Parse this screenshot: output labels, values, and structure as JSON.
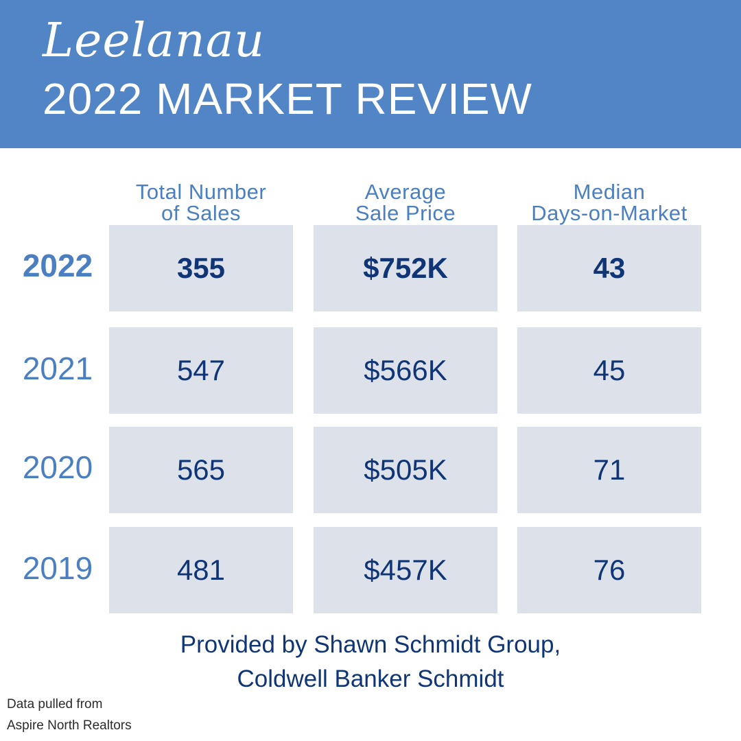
{
  "header": {
    "script_title": "Leelanau",
    "title": "2022 MARKET REVIEW"
  },
  "columns": [
    {
      "line1": "Total Number",
      "line2": "of Sales"
    },
    {
      "line1": "Average",
      "line2": "Sale Price"
    },
    {
      "line1": "Median",
      "line2": "Days-on-Market"
    }
  ],
  "rows": [
    {
      "year": "2022",
      "sales": "355",
      "price": "$752K",
      "days": "43"
    },
    {
      "year": "2021",
      "sales": "547",
      "price": "$566K",
      "days": "45"
    },
    {
      "year": "2020",
      "sales": "565",
      "price": "$505K",
      "days": "71"
    },
    {
      "year": "2019",
      "sales": "481",
      "price": "$457K",
      "days": "76"
    }
  ],
  "footer": {
    "line1": "Provided by Shawn Schmidt Group,",
    "line2": "Coldwell Banker Schmidt"
  },
  "source": {
    "line1": "Data pulled from",
    "line2": "Aspire North Realtors"
  },
  "colors": {
    "header_bg": "#5185c6",
    "label_blue": "#4a7fc1",
    "value_navy": "#0f3577",
    "cell_bg": "#dde2ea"
  }
}
